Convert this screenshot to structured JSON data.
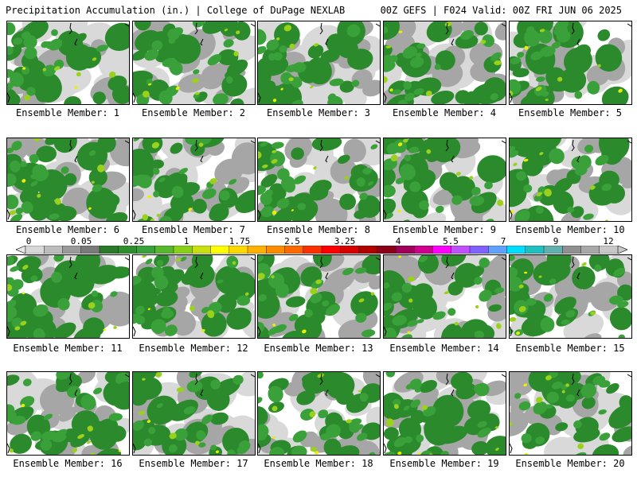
{
  "header": {
    "title_left": "Precipitation Accumulation (in.) | College of DuPage NEXLAB",
    "title_right": "00Z GEFS | F024 Valid: 00Z FRI JUN 06 2025"
  },
  "panel_label_prefix": "Ensemble Member:",
  "members": [
    {
      "id": 1,
      "label": "Ensemble Member: 1"
    },
    {
      "id": 2,
      "label": "Ensemble Member: 2"
    },
    {
      "id": 3,
      "label": "Ensemble Member: 3"
    },
    {
      "id": 4,
      "label": "Ensemble Member: 4"
    },
    {
      "id": 5,
      "label": "Ensemble Member: 5"
    },
    {
      "id": 6,
      "label": "Ensemble Member: 6"
    },
    {
      "id": 7,
      "label": "Ensemble Member: 7"
    },
    {
      "id": 8,
      "label": "Ensemble Member: 8"
    },
    {
      "id": 9,
      "label": "Ensemble Member: 9"
    },
    {
      "id": 10,
      "label": "Ensemble Member: 10"
    },
    {
      "id": 11,
      "label": "Ensemble Member: 11"
    },
    {
      "id": 12,
      "label": "Ensemble Member: 12"
    },
    {
      "id": 13,
      "label": "Ensemble Member: 13"
    },
    {
      "id": 14,
      "label": "Ensemble Member: 14"
    },
    {
      "id": 15,
      "label": "Ensemble Member: 15"
    },
    {
      "id": 16,
      "label": "Ensemble Member: 16"
    },
    {
      "id": 17,
      "label": "Ensemble Member: 17"
    },
    {
      "id": 18,
      "label": "Ensemble Member: 18"
    },
    {
      "id": 19,
      "label": "Ensemble Member: 19"
    },
    {
      "id": 20,
      "label": "Ensemble Member: 20"
    }
  ],
  "colorbar": {
    "tick_labels": [
      "0",
      "0.05",
      "0.25",
      "1",
      "1.75",
      "2.5",
      "3.25",
      "4",
      "5.5",
      "7",
      "9",
      "12"
    ],
    "colors": [
      "#d8d8d8",
      "#bdbdbd",
      "#9a9a9a",
      "#7a7a7a",
      "#2a7a2a",
      "#2f8f2f",
      "#3aa23a",
      "#57b82d",
      "#8ad01a",
      "#c8e010",
      "#ffff00",
      "#ffd800",
      "#ffb000",
      "#ff8c00",
      "#ff6a00",
      "#ff3000",
      "#ff0000",
      "#d80000",
      "#b00000",
      "#8c0018",
      "#a0005a",
      "#d0008c",
      "#ff00ff",
      "#c050ff",
      "#8060ff",
      "#60a0ff",
      "#00ddff",
      "#20c0c0",
      "#60b0b0",
      "#909090",
      "#a8a8a8",
      "#c8c8c8"
    ]
  },
  "map_colors": {
    "none": "#ffffff",
    "trace": "#d9d9d9",
    "light": "#a6a6a6",
    "dark_green": "#2b8a2b",
    "green": "#3aa13a",
    "yellowgreen": "#9ad11a",
    "yellow": "#e8f000"
  }
}
